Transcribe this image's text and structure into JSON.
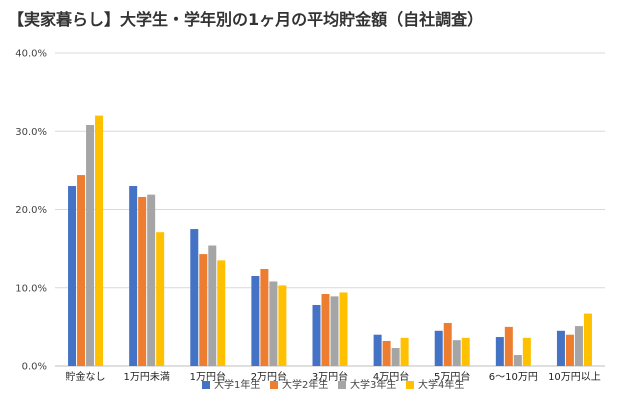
{
  "chart_data": {
    "type": "bar",
    "title": "【実家暮らし】大学生・学年別の1ヶ月の平均貯金額（自社調査）",
    "categories": [
      "貯金なし",
      "1万円未満",
      "1万円台",
      "2万円台",
      "3万円台",
      "4万円台",
      "5万円台",
      "6〜10万円",
      "10万円以上"
    ],
    "series": [
      {
        "name": "大学1年生",
        "color": "#4472C4",
        "values": [
          23.0,
          23.0,
          17.5,
          11.5,
          7.8,
          4.0,
          4.5,
          3.7,
          4.5
        ]
      },
      {
        "name": "大学2年生",
        "color": "#ED7D31",
        "values": [
          24.4,
          21.6,
          14.3,
          12.4,
          9.2,
          3.2,
          5.5,
          5.0,
          4.0
        ]
      },
      {
        "name": "大学3年生",
        "color": "#A5A5A5",
        "values": [
          30.8,
          21.9,
          15.4,
          10.8,
          8.9,
          2.3,
          3.3,
          1.4,
          5.1
        ]
      },
      {
        "name": "大学4年生",
        "color": "#FFC000",
        "values": [
          32.0,
          17.1,
          13.5,
          10.3,
          9.4,
          3.6,
          3.6,
          3.6,
          6.7
        ]
      }
    ],
    "ylim": [
      0,
      40
    ],
    "yticks": [
      0,
      10,
      20,
      30,
      40
    ],
    "ytick_labels": [
      "0.0%",
      "10.0%",
      "20.0%",
      "30.0%",
      "40.0%"
    ],
    "xlabel": "",
    "ylabel": "",
    "grid": true,
    "legend_position": "bottom"
  }
}
